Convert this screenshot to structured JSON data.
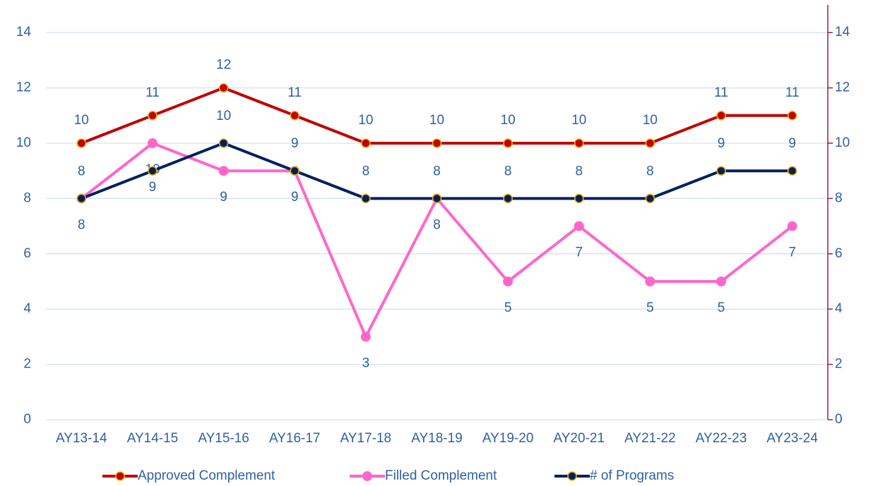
{
  "chart_data": {
    "type": "line",
    "categories": [
      "AY13-14",
      "AY14-15",
      "AY15-16",
      "AY16-17",
      "AY17-18",
      "AY18-19",
      "AY19-20",
      "AY20-21",
      "AY21-22",
      "AY22-23",
      "AY23-24"
    ],
    "series": [
      {
        "name": "Approved Complement",
        "color": "#c00000",
        "values": [
          10,
          11,
          12,
          11,
          10,
          10,
          10,
          10,
          10,
          11,
          11
        ]
      },
      {
        "name": "Filled Complement",
        "color": "#ff66cc",
        "values": [
          8,
          10,
          9,
          9,
          3,
          8,
          5,
          7,
          5,
          5,
          7
        ]
      },
      {
        "name": "# of Programs",
        "color": "#002060",
        "values": [
          8,
          9,
          10,
          9,
          8,
          8,
          8,
          8,
          8,
          9,
          9
        ]
      }
    ],
    "ylim": [
      0,
      15
    ],
    "yticks": [
      0,
      2,
      4,
      6,
      8,
      10,
      12,
      14
    ],
    "y2lim": [
      0,
      15
    ],
    "y2ticks": [
      0,
      2,
      4,
      6,
      8,
      10,
      12,
      14
    ],
    "grid": true,
    "legend": "bottom"
  }
}
